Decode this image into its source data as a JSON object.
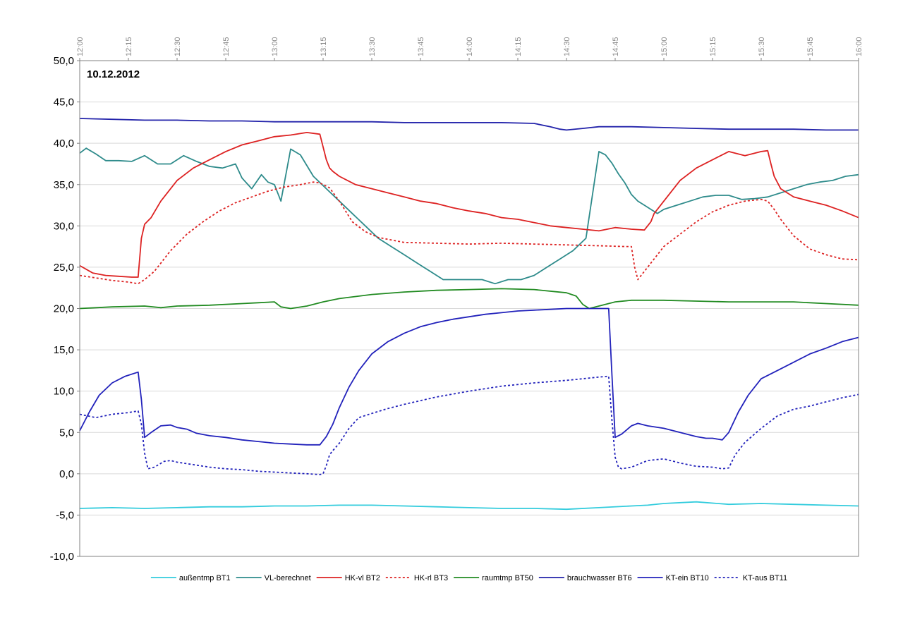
{
  "chart_data": {
    "type": "line",
    "title": "10.12.2012",
    "xlabel": "",
    "ylabel": "",
    "x_ticks": [
      "12:00",
      "12:15",
      "12:30",
      "12:45",
      "13:00",
      "13:15",
      "13:30",
      "13:45",
      "14:00",
      "14:15",
      "14:30",
      "14:45",
      "15:00",
      "15:15",
      "15:30",
      "15:45",
      "16:00"
    ],
    "xlim": [
      0,
      240
    ],
    "ylim": [
      -10,
      50
    ],
    "y_ticks": [
      "-10,0",
      "-5,0",
      "0,0",
      "5,0",
      "10,0",
      "15,0",
      "20,0",
      "25,0",
      "30,0",
      "35,0",
      "40,0",
      "45,0",
      "50,0"
    ],
    "grid": true,
    "legend_position": "bottom",
    "series": [
      {
        "name": "außentmp BT1",
        "color": "#33CCDD",
        "dash": "solid",
        "x": [
          0,
          10,
          20,
          30,
          40,
          50,
          60,
          70,
          80,
          90,
          100,
          110,
          120,
          130,
          140,
          150,
          160,
          170,
          175,
          180,
          190,
          200,
          210,
          220,
          230,
          240
        ],
        "y": [
          -4.2,
          -4.1,
          -4.2,
          -4.1,
          -4.0,
          -4.0,
          -3.9,
          -3.9,
          -3.8,
          -3.8,
          -3.9,
          -4.0,
          -4.1,
          -4.2,
          -4.2,
          -4.3,
          -4.1,
          -3.9,
          -3.8,
          -3.6,
          -3.4,
          -3.7,
          -3.6,
          -3.7,
          -3.8,
          -3.9
        ]
      },
      {
        "name": "VL-berechnet",
        "color": "#2E8B8B",
        "dash": "solid",
        "x": [
          0,
          2,
          5,
          8,
          12,
          16,
          20,
          24,
          28,
          32,
          36,
          40,
          44,
          48,
          50,
          53,
          56,
          58,
          60,
          62,
          65,
          68,
          72,
          76,
          80,
          84,
          88,
          92,
          96,
          100,
          104,
          108,
          112,
          116,
          120,
          124,
          128,
          132,
          136,
          140,
          144,
          148,
          152,
          156,
          160,
          162,
          164,
          166,
          168,
          170,
          172,
          174,
          176,
          178,
          180,
          184,
          188,
          192,
          196,
          200,
          204,
          208,
          212,
          216,
          220,
          224,
          228,
          232,
          236,
          240
        ],
        "y": [
          38.8,
          39.4,
          38.7,
          37.9,
          37.9,
          37.8,
          38.5,
          37.5,
          37.5,
          38.5,
          37.8,
          37.2,
          37.0,
          37.5,
          35.8,
          34.5,
          36.2,
          35.3,
          35.0,
          33.0,
          39.3,
          38.6,
          36.0,
          34.5,
          33.0,
          31.5,
          30.0,
          28.5,
          27.5,
          26.5,
          25.5,
          24.5,
          23.5,
          23.5,
          23.5,
          23.5,
          23.0,
          23.5,
          23.5,
          24.0,
          25.0,
          26.0,
          27.0,
          28.5,
          39.0,
          38.6,
          37.6,
          36.3,
          35.2,
          33.8,
          33.0,
          32.5,
          32.0,
          31.5,
          32.0,
          32.5,
          33.0,
          33.5,
          33.7,
          33.7,
          33.2,
          33.3,
          33.5,
          34.0,
          34.5,
          35.0,
          35.3,
          35.5,
          36.0,
          36.2
        ]
      },
      {
        "name": "HK-vl BT2",
        "color": "#DD2222",
        "dash": "solid",
        "x": [
          0,
          4,
          8,
          12,
          16,
          18,
          19,
          20,
          22,
          25,
          30,
          35,
          40,
          45,
          50,
          55,
          60,
          65,
          70,
          74,
          76,
          77,
          78,
          80,
          85,
          90,
          95,
          100,
          105,
          110,
          115,
          120,
          125,
          130,
          135,
          140,
          145,
          150,
          155,
          160,
          165,
          170,
          174,
          175,
          176,
          177,
          178,
          180,
          185,
          190,
          195,
          200,
          205,
          210,
          212,
          213,
          214,
          216,
          220,
          225,
          230,
          235,
          240
        ],
        "y": [
          25.2,
          24.3,
          24.0,
          23.9,
          23.8,
          23.8,
          28.5,
          30.2,
          31.0,
          33.0,
          35.5,
          37.0,
          38.0,
          39.0,
          39.8,
          40.3,
          40.8,
          41.0,
          41.3,
          41.1,
          38.0,
          37.0,
          36.6,
          36.0,
          35.0,
          34.5,
          34.0,
          33.5,
          33.0,
          32.7,
          32.2,
          31.8,
          31.5,
          31.0,
          30.8,
          30.4,
          30.0,
          29.8,
          29.6,
          29.4,
          29.8,
          29.6,
          29.5,
          30.0,
          30.5,
          31.5,
          32.0,
          33.0,
          35.5,
          37.0,
          38.0,
          39.0,
          38.5,
          39.0,
          39.1,
          37.5,
          36.0,
          34.5,
          33.5,
          33.0,
          32.5,
          31.8,
          31.0
        ]
      },
      {
        "name": "HK-rl BT3",
        "color": "#DD2222",
        "dash": "dashed",
        "x": [
          0,
          5,
          10,
          15,
          18,
          20,
          23,
          28,
          33,
          38,
          43,
          48,
          53,
          58,
          63,
          68,
          72,
          74,
          77,
          80,
          84,
          88,
          92,
          96,
          100,
          110,
          120,
          130,
          140,
          150,
          160,
          168,
          170,
          171,
          172,
          174,
          176,
          180,
          185,
          190,
          195,
          200,
          205,
          210,
          212,
          214,
          216,
          220,
          225,
          230,
          235,
          240
        ],
        "y": [
          24.0,
          23.7,
          23.4,
          23.2,
          23.0,
          23.5,
          24.5,
          27.0,
          29.0,
          30.5,
          31.8,
          32.8,
          33.5,
          34.2,
          34.7,
          35.0,
          35.3,
          35.2,
          34.6,
          33.0,
          30.5,
          29.3,
          28.6,
          28.3,
          28.0,
          27.9,
          27.8,
          27.9,
          27.8,
          27.7,
          27.6,
          27.5,
          27.5,
          25.0,
          23.5,
          24.5,
          25.5,
          27.5,
          29.0,
          30.5,
          31.7,
          32.5,
          33.0,
          33.2,
          33.0,
          32.0,
          30.8,
          28.8,
          27.2,
          26.5,
          26.0,
          25.9
        ]
      },
      {
        "name": "raumtmp BT50",
        "color": "#228B22",
        "dash": "solid",
        "x": [
          0,
          10,
          20,
          25,
          30,
          40,
          50,
          55,
          60,
          62,
          65,
          70,
          75,
          80,
          90,
          100,
          110,
          120,
          130,
          140,
          150,
          153,
          155,
          157,
          160,
          165,
          170,
          180,
          190,
          200,
          210,
          220,
          230,
          240
        ],
        "y": [
          20.0,
          20.2,
          20.3,
          20.1,
          20.3,
          20.4,
          20.6,
          20.7,
          20.8,
          20.2,
          20.0,
          20.3,
          20.8,
          21.2,
          21.7,
          22.0,
          22.2,
          22.3,
          22.4,
          22.3,
          21.9,
          21.5,
          20.5,
          20.0,
          20.3,
          20.8,
          21.0,
          21.0,
          20.9,
          20.8,
          20.8,
          20.8,
          20.6,
          20.4
        ]
      },
      {
        "name": "brauchwasser BT6",
        "color": "#2222AA",
        "dash": "solid",
        "x": [
          0,
          10,
          20,
          30,
          40,
          50,
          60,
          70,
          80,
          90,
          100,
          110,
          120,
          130,
          140,
          145,
          148,
          150,
          155,
          160,
          170,
          180,
          190,
          200,
          210,
          220,
          230,
          240
        ],
        "y": [
          43.0,
          42.9,
          42.8,
          42.8,
          42.7,
          42.7,
          42.6,
          42.6,
          42.6,
          42.6,
          42.5,
          42.5,
          42.5,
          42.5,
          42.4,
          42.0,
          41.7,
          41.6,
          41.8,
          42.0,
          42.0,
          41.9,
          41.8,
          41.7,
          41.7,
          41.7,
          41.6,
          41.6
        ]
      },
      {
        "name": "KT-ein BT10",
        "color": "#2222BB",
        "dash": "solid",
        "x": [
          0,
          3,
          6,
          10,
          14,
          18,
          19,
          20,
          22,
          25,
          28,
          30,
          33,
          36,
          40,
          45,
          50,
          55,
          60,
          65,
          70,
          74,
          76,
          78,
          80,
          83,
          86,
          90,
          95,
          100,
          105,
          110,
          115,
          120,
          125,
          130,
          135,
          140,
          145,
          150,
          155,
          160,
          163,
          164,
          165,
          167,
          170,
          172,
          175,
          180,
          185,
          190,
          193,
          195,
          198,
          200,
          203,
          206,
          210,
          215,
          220,
          225,
          230,
          235,
          240
        ],
        "y": [
          5.2,
          7.5,
          9.5,
          11.0,
          11.8,
          12.3,
          9.0,
          4.4,
          5.0,
          5.8,
          5.9,
          5.6,
          5.4,
          4.9,
          4.6,
          4.4,
          4.1,
          3.9,
          3.7,
          3.6,
          3.5,
          3.5,
          4.5,
          6.0,
          8.0,
          10.5,
          12.5,
          14.5,
          16.0,
          17.0,
          17.8,
          18.3,
          18.7,
          19.0,
          19.3,
          19.5,
          19.7,
          19.8,
          19.9,
          20.0,
          20.0,
          20.0,
          20.0,
          12.0,
          4.4,
          4.8,
          5.8,
          6.1,
          5.8,
          5.5,
          5.0,
          4.5,
          4.3,
          4.3,
          4.1,
          5.0,
          7.5,
          9.5,
          11.5,
          12.5,
          13.5,
          14.5,
          15.2,
          16.0,
          16.5
        ]
      },
      {
        "name": "KT-aus BT11",
        "color": "#2222BB",
        "dash": "dashed",
        "x": [
          0,
          5,
          10,
          15,
          18,
          19,
          20,
          21,
          23,
          26,
          28,
          30,
          35,
          40,
          45,
          50,
          55,
          60,
          65,
          70,
          74,
          75,
          76,
          77,
          78,
          80,
          83,
          86,
          90,
          95,
          100,
          110,
          120,
          130,
          140,
          150,
          155,
          160,
          163,
          164,
          165,
          166,
          167,
          170,
          175,
          180,
          185,
          190,
          195,
          198,
          200,
          202,
          205,
          210,
          215,
          220,
          225,
          230,
          235,
          240
        ],
        "y": [
          7.2,
          6.8,
          7.2,
          7.4,
          7.6,
          6.0,
          2.5,
          0.6,
          0.8,
          1.5,
          1.6,
          1.4,
          1.1,
          0.8,
          0.6,
          0.5,
          0.3,
          0.2,
          0.1,
          0.0,
          -0.1,
          0.0,
          1.0,
          2.3,
          2.8,
          3.7,
          5.5,
          6.8,
          7.3,
          7.9,
          8.4,
          9.3,
          10.0,
          10.6,
          11.0,
          11.3,
          11.5,
          11.7,
          11.8,
          6.5,
          2.0,
          0.8,
          0.6,
          0.8,
          1.6,
          1.8,
          1.3,
          0.9,
          0.8,
          0.6,
          0.7,
          2.3,
          3.8,
          5.5,
          7.0,
          7.8,
          8.2,
          8.7,
          9.2,
          9.6
        ]
      }
    ]
  }
}
